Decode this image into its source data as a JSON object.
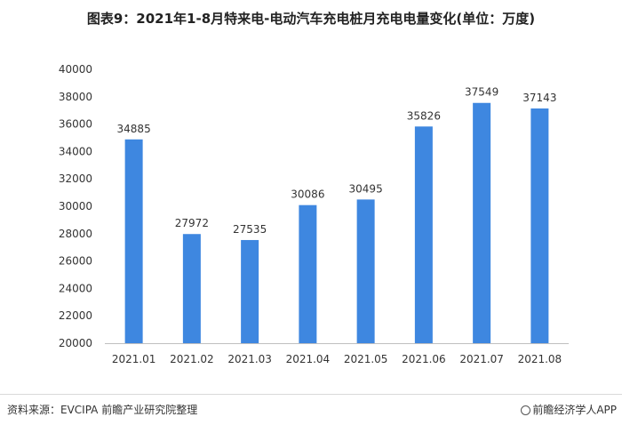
{
  "title": "图表9：2021年1-8月特来电-电动汽车充电桩月充电电量变化(单位：万度)",
  "footer": {
    "source": "资料来源：EVCIPA 前瞻产业研究院整理",
    "brand": "前瞻经济学人APP"
  },
  "colors": {
    "bar": "#3e87e0",
    "axis": "#bfbfbf",
    "text": "#333333"
  },
  "chart_data": {
    "type": "bar",
    "categories": [
      "2021.01",
      "2021.02",
      "2021.03",
      "2021.04",
      "2021.05",
      "2021.06",
      "2021.07",
      "2021.08"
    ],
    "values": [
      34885,
      27972,
      27535,
      30086,
      30495,
      35826,
      37549,
      37143
    ],
    "ylim": [
      20000,
      40000
    ],
    "yticks": [
      20000,
      22000,
      24000,
      26000,
      28000,
      30000,
      32000,
      34000,
      36000,
      38000,
      40000
    ],
    "grid": false,
    "data_labels": true
  }
}
